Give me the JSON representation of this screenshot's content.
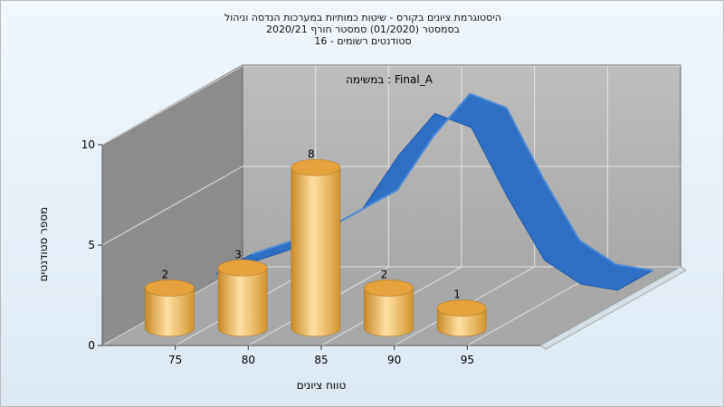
{
  "titles": {
    "line1": "היסטוגרמת ציונים בקורס - שיטות כמותיות במערכות הנדסה וניהול",
    "line2": "בסמסטר  (01/2020)  סמסטר חורף  2020/21",
    "line3": "סטודנטים רשומים - 16"
  },
  "chart_data": {
    "type": "bar",
    "title": "היסטוגרמת ציונים בקורס - שיטות כמותיות במערכות הנדסה וניהול",
    "inner_label": "במשימה : Final_A",
    "xlabel": "טווח ציונים",
    "ylabel": "מספר סטודנטים",
    "x_ticks": [
      "75",
      "80",
      "85",
      "90",
      "95"
    ],
    "y_ticks": [
      "0",
      "5",
      "10"
    ],
    "ylim": [
      0,
      10
    ],
    "grid": true,
    "three_d": true,
    "bars": [
      {
        "range": "70-75",
        "value": 2,
        "label": "2"
      },
      {
        "range": "75-80",
        "value": 3,
        "label": "3"
      },
      {
        "range": "80-85",
        "value": 8,
        "label": "8"
      },
      {
        "range": "85-90",
        "value": 2,
        "label": "2"
      },
      {
        "range": "90-95",
        "value": 1,
        "label": "1"
      }
    ],
    "curve": {
      "type": "normal-distribution",
      "x": [
        72.5,
        77.5,
        82.5,
        85,
        87.5,
        90,
        92.5,
        95,
        97.5,
        100
      ],
      "y": [
        1.4,
        2.6,
        4.6,
        7.3,
        9.4,
        8.7,
        5.2,
        2.1,
        0.9,
        0.6
      ]
    },
    "colors": {
      "bar": "#e8a640",
      "curve": "#2f6fc4",
      "back_wall": "#b3b3b3",
      "left_wall": "#8c8c8c",
      "floor": "#a6a6a6"
    }
  }
}
